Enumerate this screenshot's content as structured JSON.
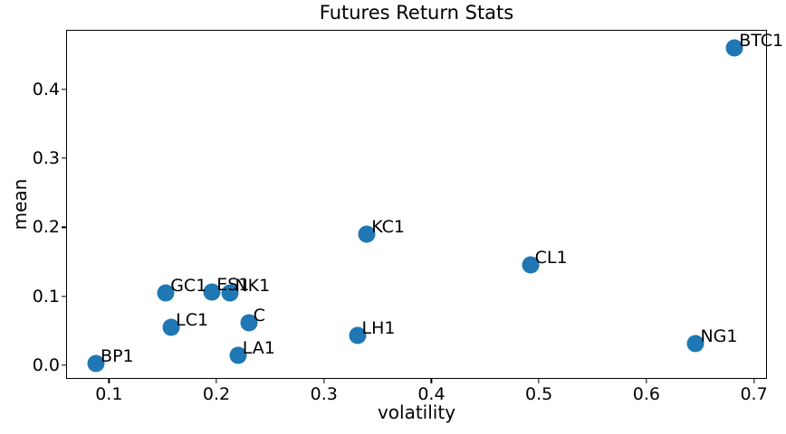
{
  "colors": {
    "marker": "#1f77b4",
    "text": "#000000",
    "background": "#ffffff"
  },
  "chart_data": {
    "type": "scatter",
    "title": "Futures Return Stats",
    "xlabel": "volatility",
    "ylabel": "mean",
    "xlim": [
      0.061,
      0.713
    ],
    "ylim": [
      -0.021,
      0.485
    ],
    "grid": false,
    "legend": "none",
    "xticks": [
      {
        "value": 0.1,
        "label": "0.1"
      },
      {
        "value": 0.2,
        "label": "0.2"
      },
      {
        "value": 0.3,
        "label": "0.3"
      },
      {
        "value": 0.4,
        "label": "0.4"
      },
      {
        "value": 0.5,
        "label": "0.5"
      },
      {
        "value": 0.6,
        "label": "0.6"
      },
      {
        "value": 0.7,
        "label": "0.7"
      }
    ],
    "yticks": [
      {
        "value": 0.0,
        "label": "0.0"
      },
      {
        "value": 0.1,
        "label": "0.1"
      },
      {
        "value": 0.2,
        "label": "0.2"
      },
      {
        "value": 0.3,
        "label": "0.3"
      },
      {
        "value": 0.4,
        "label": "0.4"
      }
    ],
    "points": [
      {
        "label": "BTC1",
        "volatility": 0.682,
        "mean": 0.46
      },
      {
        "label": "KC1",
        "volatility": 0.34,
        "mean": 0.19
      },
      {
        "label": "CL1",
        "volatility": 0.492,
        "mean": 0.146
      },
      {
        "label": "ES1",
        "volatility": 0.196,
        "mean": 0.106
      },
      {
        "label": "NK1",
        "volatility": 0.213,
        "mean": 0.105
      },
      {
        "label": "GC1",
        "volatility": 0.153,
        "mean": 0.105
      },
      {
        "label": "C",
        "volatility": 0.23,
        "mean": 0.062
      },
      {
        "label": "LC1",
        "volatility": 0.158,
        "mean": 0.055
      },
      {
        "label": "LH1",
        "volatility": 0.331,
        "mean": 0.043
      },
      {
        "label": "NG1",
        "volatility": 0.646,
        "mean": 0.032
      },
      {
        "label": "LA1",
        "volatility": 0.22,
        "mean": 0.014
      },
      {
        "label": "BP1",
        "volatility": 0.088,
        "mean": 0.003
      }
    ]
  }
}
